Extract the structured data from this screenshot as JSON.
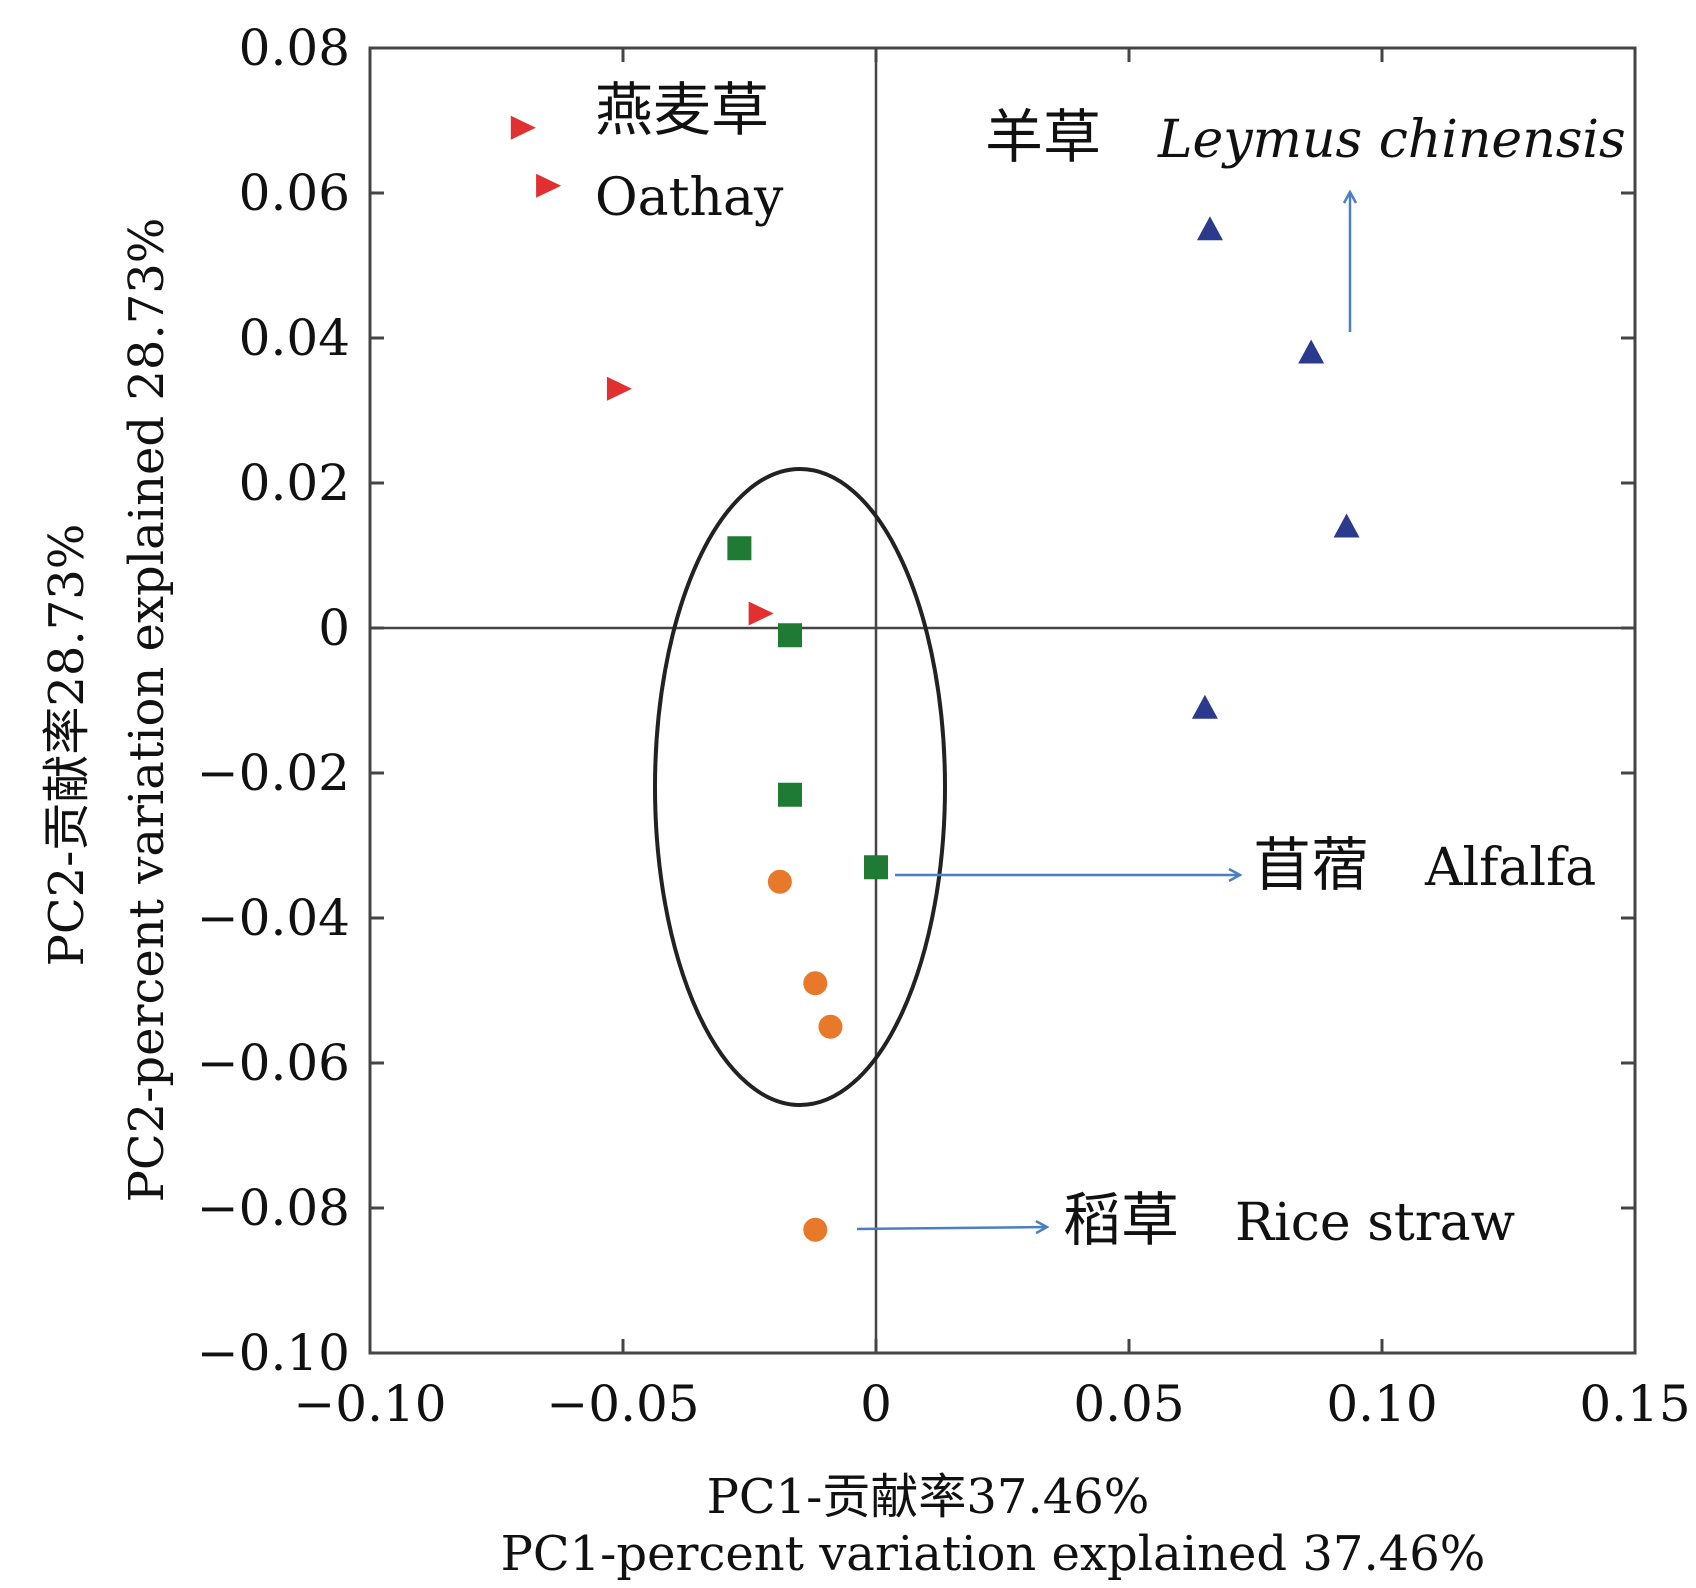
{
  "chart_data": {
    "type": "scatter",
    "xlabel_cn": "PC1-贡献率37.46%",
    "xlabel": "PC1-percent variation explained 37.46%",
    "ylabel_cn": "PC2-贡献率28.73%",
    "ylabel": "PC2-percent variation explained 28.73%",
    "xlim": [
      -0.1,
      0.15
    ],
    "ylim": [
      -0.1,
      0.08
    ],
    "x_ticks": [
      -0.1,
      -0.05,
      0,
      0.05,
      0.1,
      0.15
    ],
    "x_tick_labels": [
      "−0.10",
      "−0.05",
      "0",
      "0.05",
      "0.10",
      "0.15"
    ],
    "y_ticks": [
      0.08,
      0.06,
      0.04,
      0.02,
      0,
      -0.02,
      -0.04,
      -0.06,
      -0.08,
      -0.1
    ],
    "y_tick_labels": [
      "0.08",
      "0.06",
      "0.04",
      "0.02",
      "0",
      "−0.02",
      "−0.04",
      "−0.06",
      "−0.08",
      "−0.10"
    ],
    "grid": false,
    "zero_lines": true,
    "series": [
      {
        "name": "Oathay",
        "label_cn": "燕麦草",
        "marker": "triangle-right",
        "color": "#e03030",
        "points": [
          [
            -0.07,
            0.069
          ],
          [
            -0.065,
            0.061
          ],
          [
            -0.051,
            0.033
          ],
          [
            -0.023,
            0.002
          ]
        ]
      },
      {
        "name": "Leymus chinensis",
        "label_cn": "羊草",
        "marker": "triangle-up",
        "color": "#2b3a8c",
        "points": [
          [
            0.066,
            0.055
          ],
          [
            0.086,
            0.038
          ],
          [
            0.093,
            0.014
          ],
          [
            0.065,
            -0.011
          ]
        ]
      },
      {
        "name": "Alfalfa",
        "label_cn": "苜蓿",
        "marker": "square",
        "color": "#1f7a33",
        "points": [
          [
            -0.027,
            0.011
          ],
          [
            -0.017,
            -0.001
          ],
          [
            -0.017,
            -0.023
          ],
          [
            0.0,
            -0.033
          ]
        ]
      },
      {
        "name": "Rice straw",
        "label_cn": "稻草",
        "marker": "circle",
        "color": "#e8782a",
        "points": [
          [
            -0.019,
            -0.035
          ],
          [
            -0.012,
            -0.049
          ],
          [
            -0.009,
            -0.055
          ],
          [
            -0.012,
            -0.083
          ]
        ]
      }
    ]
  }
}
